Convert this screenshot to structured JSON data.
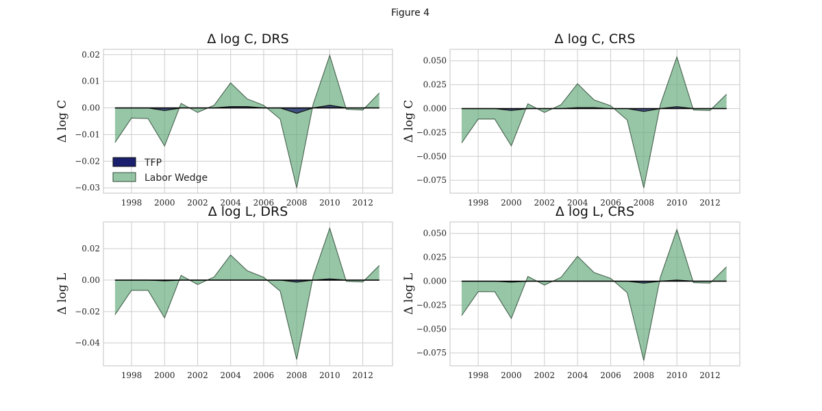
{
  "figure_title": "Figure 4",
  "colors": {
    "tfp_fill": "#1a1f6e",
    "labor_fill": "#5fa878",
    "outline": "#2e4a35",
    "zero_line": "#000000",
    "grid": "#cccccc"
  },
  "legend": {
    "tfp": "TFP",
    "labor": "Labor Wedge"
  },
  "chart_data": [
    {
      "type": "area",
      "title": "Δ log C, DRS",
      "ylabel": "Δ log C",
      "x": [
        1997,
        1998,
        1999,
        2000,
        2001,
        2002,
        2003,
        2004,
        2005,
        2006,
        2007,
        2008,
        2009,
        2010,
        2011,
        2012,
        2013
      ],
      "xticks": [
        1998,
        2000,
        2002,
        2004,
        2006,
        2008,
        2010,
        2012
      ],
      "xticklabels": [
        "1998",
        "2000",
        "2002",
        "2004",
        "2006",
        "2008",
        "2010",
        "2012"
      ],
      "xlim": [
        1996.3,
        2013.8
      ],
      "ylim": [
        -0.032,
        0.022
      ],
      "yticks": [
        -0.03,
        -0.02,
        -0.01,
        0.0,
        0.01,
        0.02
      ],
      "yticklabels": [
        "−0.03",
        "−0.02",
        "−0.01",
        "0.00",
        "0.01",
        "0.02"
      ],
      "grid": true,
      "legend": "lower-left",
      "series": [
        {
          "name": "TFP",
          "values": [
            0,
            0,
            0,
            -0.001,
            0,
            0,
            0,
            0.0005,
            0.0005,
            0,
            0,
            -0.002,
            0,
            0.001,
            0,
            0,
            0
          ]
        },
        {
          "name": "Labor Wedge",
          "values": [
            -0.013,
            -0.0038,
            -0.004,
            -0.0143,
            0.0017,
            -0.0017,
            0.001,
            0.0094,
            0.0034,
            0.001,
            -0.0042,
            -0.03,
            0.0015,
            0.0197,
            -0.0005,
            -0.0008,
            0.0056
          ]
        }
      ]
    },
    {
      "type": "area",
      "title": "Δ log C, CRS",
      "ylabel": "Δ log C",
      "x": [
        1997,
        1998,
        1999,
        2000,
        2001,
        2002,
        2003,
        2004,
        2005,
        2006,
        2007,
        2008,
        2009,
        2010,
        2011,
        2012,
        2013
      ],
      "xticks": [
        1998,
        2000,
        2002,
        2004,
        2006,
        2008,
        2010,
        2012
      ],
      "xticklabels": [
        "1998",
        "2000",
        "2002",
        "2004",
        "2006",
        "2008",
        "2010",
        "2012"
      ],
      "xlim": [
        1996.3,
        2013.8
      ],
      "ylim": [
        -0.0885,
        0.062
      ],
      "yticks": [
        -0.075,
        -0.05,
        -0.025,
        0.0,
        0.025,
        0.05
      ],
      "yticklabels": [
        "−0.075",
        "−0.050",
        "−0.025",
        "0.000",
        "0.025",
        "0.050"
      ],
      "grid": true,
      "legend": "none",
      "series": [
        {
          "name": "TFP",
          "values": [
            0,
            0,
            0,
            -0.002,
            0,
            0,
            0,
            0.001,
            0.001,
            0,
            0,
            -0.003,
            0,
            0.002,
            0,
            0,
            0
          ]
        },
        {
          "name": "Labor Wedge",
          "values": [
            -0.036,
            -0.011,
            -0.011,
            -0.039,
            0.005,
            -0.004,
            0.004,
            0.026,
            0.009,
            0.003,
            -0.012,
            -0.083,
            0.004,
            0.054,
            -0.0015,
            -0.002,
            0.015
          ]
        }
      ]
    },
    {
      "type": "area",
      "title": "Δ log L, DRS",
      "ylabel": "Δ log L",
      "x": [
        1997,
        1998,
        1999,
        2000,
        2001,
        2002,
        2003,
        2004,
        2005,
        2006,
        2007,
        2008,
        2009,
        2010,
        2011,
        2012,
        2013
      ],
      "xticks": [
        1998,
        2000,
        2002,
        2004,
        2006,
        2008,
        2010,
        2012
      ],
      "xticklabels": [
        "1998",
        "2000",
        "2002",
        "2004",
        "2006",
        "2008",
        "2010",
        "2012"
      ],
      "xlim": [
        1996.3,
        2013.8
      ],
      "ylim": [
        -0.0545,
        0.037
      ],
      "yticks": [
        -0.04,
        -0.02,
        0.0,
        0.02
      ],
      "yticklabels": [
        "−0.04",
        "−0.02",
        "0.00",
        "0.02"
      ],
      "grid": true,
      "legend": "none",
      "series": [
        {
          "name": "TFP",
          "values": [
            0,
            0,
            0,
            -0.0005,
            0,
            0,
            0,
            0,
            0,
            0,
            0,
            -0.0013,
            0,
            0.0008,
            0,
            0,
            0
          ]
        },
        {
          "name": "Labor Wedge",
          "values": [
            -0.022,
            -0.0065,
            -0.0065,
            -0.024,
            0.003,
            -0.0028,
            0.002,
            0.016,
            0.006,
            0.0018,
            -0.007,
            -0.0505,
            0.0025,
            0.033,
            -0.0008,
            -0.0012,
            0.0093
          ]
        }
      ]
    },
    {
      "type": "area",
      "title": "Δ log L, CRS",
      "ylabel": "Δ log L",
      "x": [
        1997,
        1998,
        1999,
        2000,
        2001,
        2002,
        2003,
        2004,
        2005,
        2006,
        2007,
        2008,
        2009,
        2010,
        2011,
        2012,
        2013
      ],
      "xticks": [
        1998,
        2000,
        2002,
        2004,
        2006,
        2008,
        2010,
        2012
      ],
      "xticklabels": [
        "1998",
        "2000",
        "2002",
        "2004",
        "2006",
        "2008",
        "2010",
        "2012"
      ],
      "xlim": [
        1996.3,
        2013.8
      ],
      "ylim": [
        -0.0885,
        0.062
      ],
      "yticks": [
        -0.075,
        -0.05,
        -0.025,
        0.0,
        0.025,
        0.05
      ],
      "yticklabels": [
        "−0.075",
        "−0.050",
        "−0.025",
        "0.000",
        "0.025",
        "0.050"
      ],
      "grid": true,
      "legend": "none",
      "series": [
        {
          "name": "TFP",
          "values": [
            0,
            0,
            0,
            -0.001,
            0,
            0,
            0,
            0,
            0,
            0,
            0,
            -0.002,
            0,
            0.0012,
            0,
            0,
            0
          ]
        },
        {
          "name": "Labor Wedge",
          "values": [
            -0.036,
            -0.011,
            -0.011,
            -0.039,
            0.005,
            -0.004,
            0.004,
            0.026,
            0.009,
            0.003,
            -0.012,
            -0.083,
            0.004,
            0.054,
            -0.0015,
            -0.002,
            0.015
          ]
        }
      ]
    }
  ]
}
